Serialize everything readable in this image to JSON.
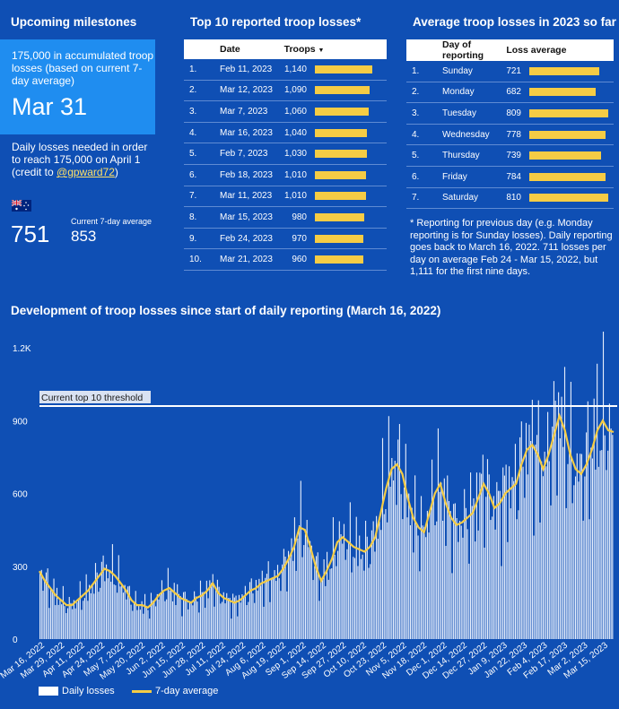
{
  "milestones": {
    "heading": "Upcoming milestones",
    "box_text": "175,000 in accumulated troop losses (based on current 7-day average)",
    "date": "Mar 31",
    "needed_text": "Daily losses needed in order to reach 175,000 on April 1",
    "credit_prefix": "(credit to ",
    "credit_handle": "@gpward72",
    "credit_suffix": ")",
    "needed_value": "751",
    "avg_label": "Current 7-day average",
    "avg_value": "853"
  },
  "top10": {
    "heading": "Top 10 reported troop losses*",
    "col_date": "Date",
    "col_troops": "Troops",
    "sort_icon": "caret-down-icon",
    "rows": [
      {
        "rank": "1.",
        "date": "Feb 11, 2023",
        "troops": "1,140",
        "v": 1140
      },
      {
        "rank": "2.",
        "date": "Mar 12, 2023",
        "troops": "1,090",
        "v": 1090
      },
      {
        "rank": "3.",
        "date": "Mar 7, 2023",
        "troops": "1,060",
        "v": 1060
      },
      {
        "rank": "4.",
        "date": "Mar 16, 2023",
        "troops": "1,040",
        "v": 1040
      },
      {
        "rank": "5.",
        "date": "Feb 7, 2023",
        "troops": "1,030",
        "v": 1030
      },
      {
        "rank": "6.",
        "date": "Feb 18, 2023",
        "troops": "1,010",
        "v": 1010
      },
      {
        "rank": "7.",
        "date": "Mar 11, 2023",
        "troops": "1,010",
        "v": 1010
      },
      {
        "rank": "8.",
        "date": "Mar 15, 2023",
        "troops": "980",
        "v": 980
      },
      {
        "rank": "9.",
        "date": "Feb 24, 2023",
        "troops": "970",
        "v": 970
      },
      {
        "rank": "10.",
        "date": "Mar 21, 2023",
        "troops": "960",
        "v": 960
      }
    ]
  },
  "weekday": {
    "heading": "Average troop losses in 2023 so far",
    "col_day": "Day of reporting",
    "col_avg": "Loss average",
    "rows": [
      {
        "rank": "1.",
        "day": "Sunday",
        "avg": "721",
        "v": 721
      },
      {
        "rank": "2.",
        "day": "Monday",
        "avg": "682",
        "v": 682
      },
      {
        "rank": "3.",
        "day": "Tuesday",
        "avg": "809",
        "v": 809
      },
      {
        "rank": "4.",
        "day": "Wednesday",
        "avg": "778",
        "v": 778
      },
      {
        "rank": "5.",
        "day": "Thursday",
        "avg": "739",
        "v": 739
      },
      {
        "rank": "6.",
        "day": "Friday",
        "avg": "784",
        "v": 784
      },
      {
        "rank": "7.",
        "day": "Saturday",
        "avg": "810",
        "v": 810
      }
    ],
    "note": "* Reporting for previous day (e.g. Monday reporting is for Sunday losses). Daily reporting goes back to March 16, 2022. 711 losses per day on average Feb 24 - Mar 15, 2022, but 1,111 for the first nine days."
  },
  "chart_data": {
    "type": "bar",
    "title": "Development of troop losses since start of daily reporting (March 16, 2022)",
    "ylim": [
      0,
      1200
    ],
    "yticks": [
      0,
      300,
      600,
      900
    ],
    "ytick_labels": [
      "0",
      "300",
      "600",
      "900",
      "1.2K"
    ],
    "grid": false,
    "threshold": {
      "label": "Current top 10 threshold",
      "value": 960
    },
    "x_tick_labels": [
      "Mar 16, 2022",
      "Mar 29, 2022",
      "Apr 11, 2022",
      "Apr 24, 2022",
      "May 7, 2022",
      "May 20, 2022",
      "Jun 2, 2022",
      "Jun 15, 2022",
      "Jun 28, 2022",
      "Jul 11, 2022",
      "Jul 24, 2022",
      "Aug 6, 2022",
      "Aug 19, 2022",
      "Sep 1, 2022",
      "Sep 14, 2022",
      "Sep 27, 2022",
      "Oct 10, 2022",
      "Oct 23, 2022",
      "Nov 5, 2022",
      "Nov 18, 2022",
      "Dec 1, 2022",
      "Dec 14, 2022",
      "Dec 27, 2022",
      "Jan 9, 2023",
      "Jan 22, 2023",
      "Feb 4, 2023",
      "Feb 17, 2023",
      "Mar 2, 2023",
      "Mar 15, 2023"
    ],
    "series": [
      {
        "name": "Daily losses",
        "type": "bar"
      },
      {
        "name": "7-day average",
        "type": "line"
      }
    ],
    "seven_day_average": [
      280,
      240,
      210,
      180,
      160,
      140,
      140,
      160,
      180,
      200,
      230,
      260,
      290,
      280,
      260,
      230,
      200,
      160,
      140,
      140,
      130,
      150,
      180,
      200,
      210,
      190,
      170,
      160,
      150,
      170,
      180,
      200,
      230,
      190,
      170,
      160,
      150,
      160,
      180,
      200,
      210,
      230,
      240,
      250,
      260,
      290,
      330,
      380,
      460,
      450,
      380,
      300,
      240,
      280,
      330,
      400,
      420,
      400,
      380,
      370,
      360,
      380,
      420,
      520,
      620,
      700,
      720,
      680,
      580,
      500,
      460,
      440,
      520,
      600,
      640,
      560,
      500,
      470,
      480,
      500,
      520,
      580,
      640,
      600,
      540,
      560,
      600,
      620,
      640,
      720,
      780,
      800,
      760,
      700,
      760,
      840,
      920,
      860,
      760,
      700,
      680,
      720,
      780,
      860,
      900,
      860,
      853
    ]
  },
  "legend": {
    "bar_label": "Daily losses",
    "line_label": "7-day average"
  }
}
